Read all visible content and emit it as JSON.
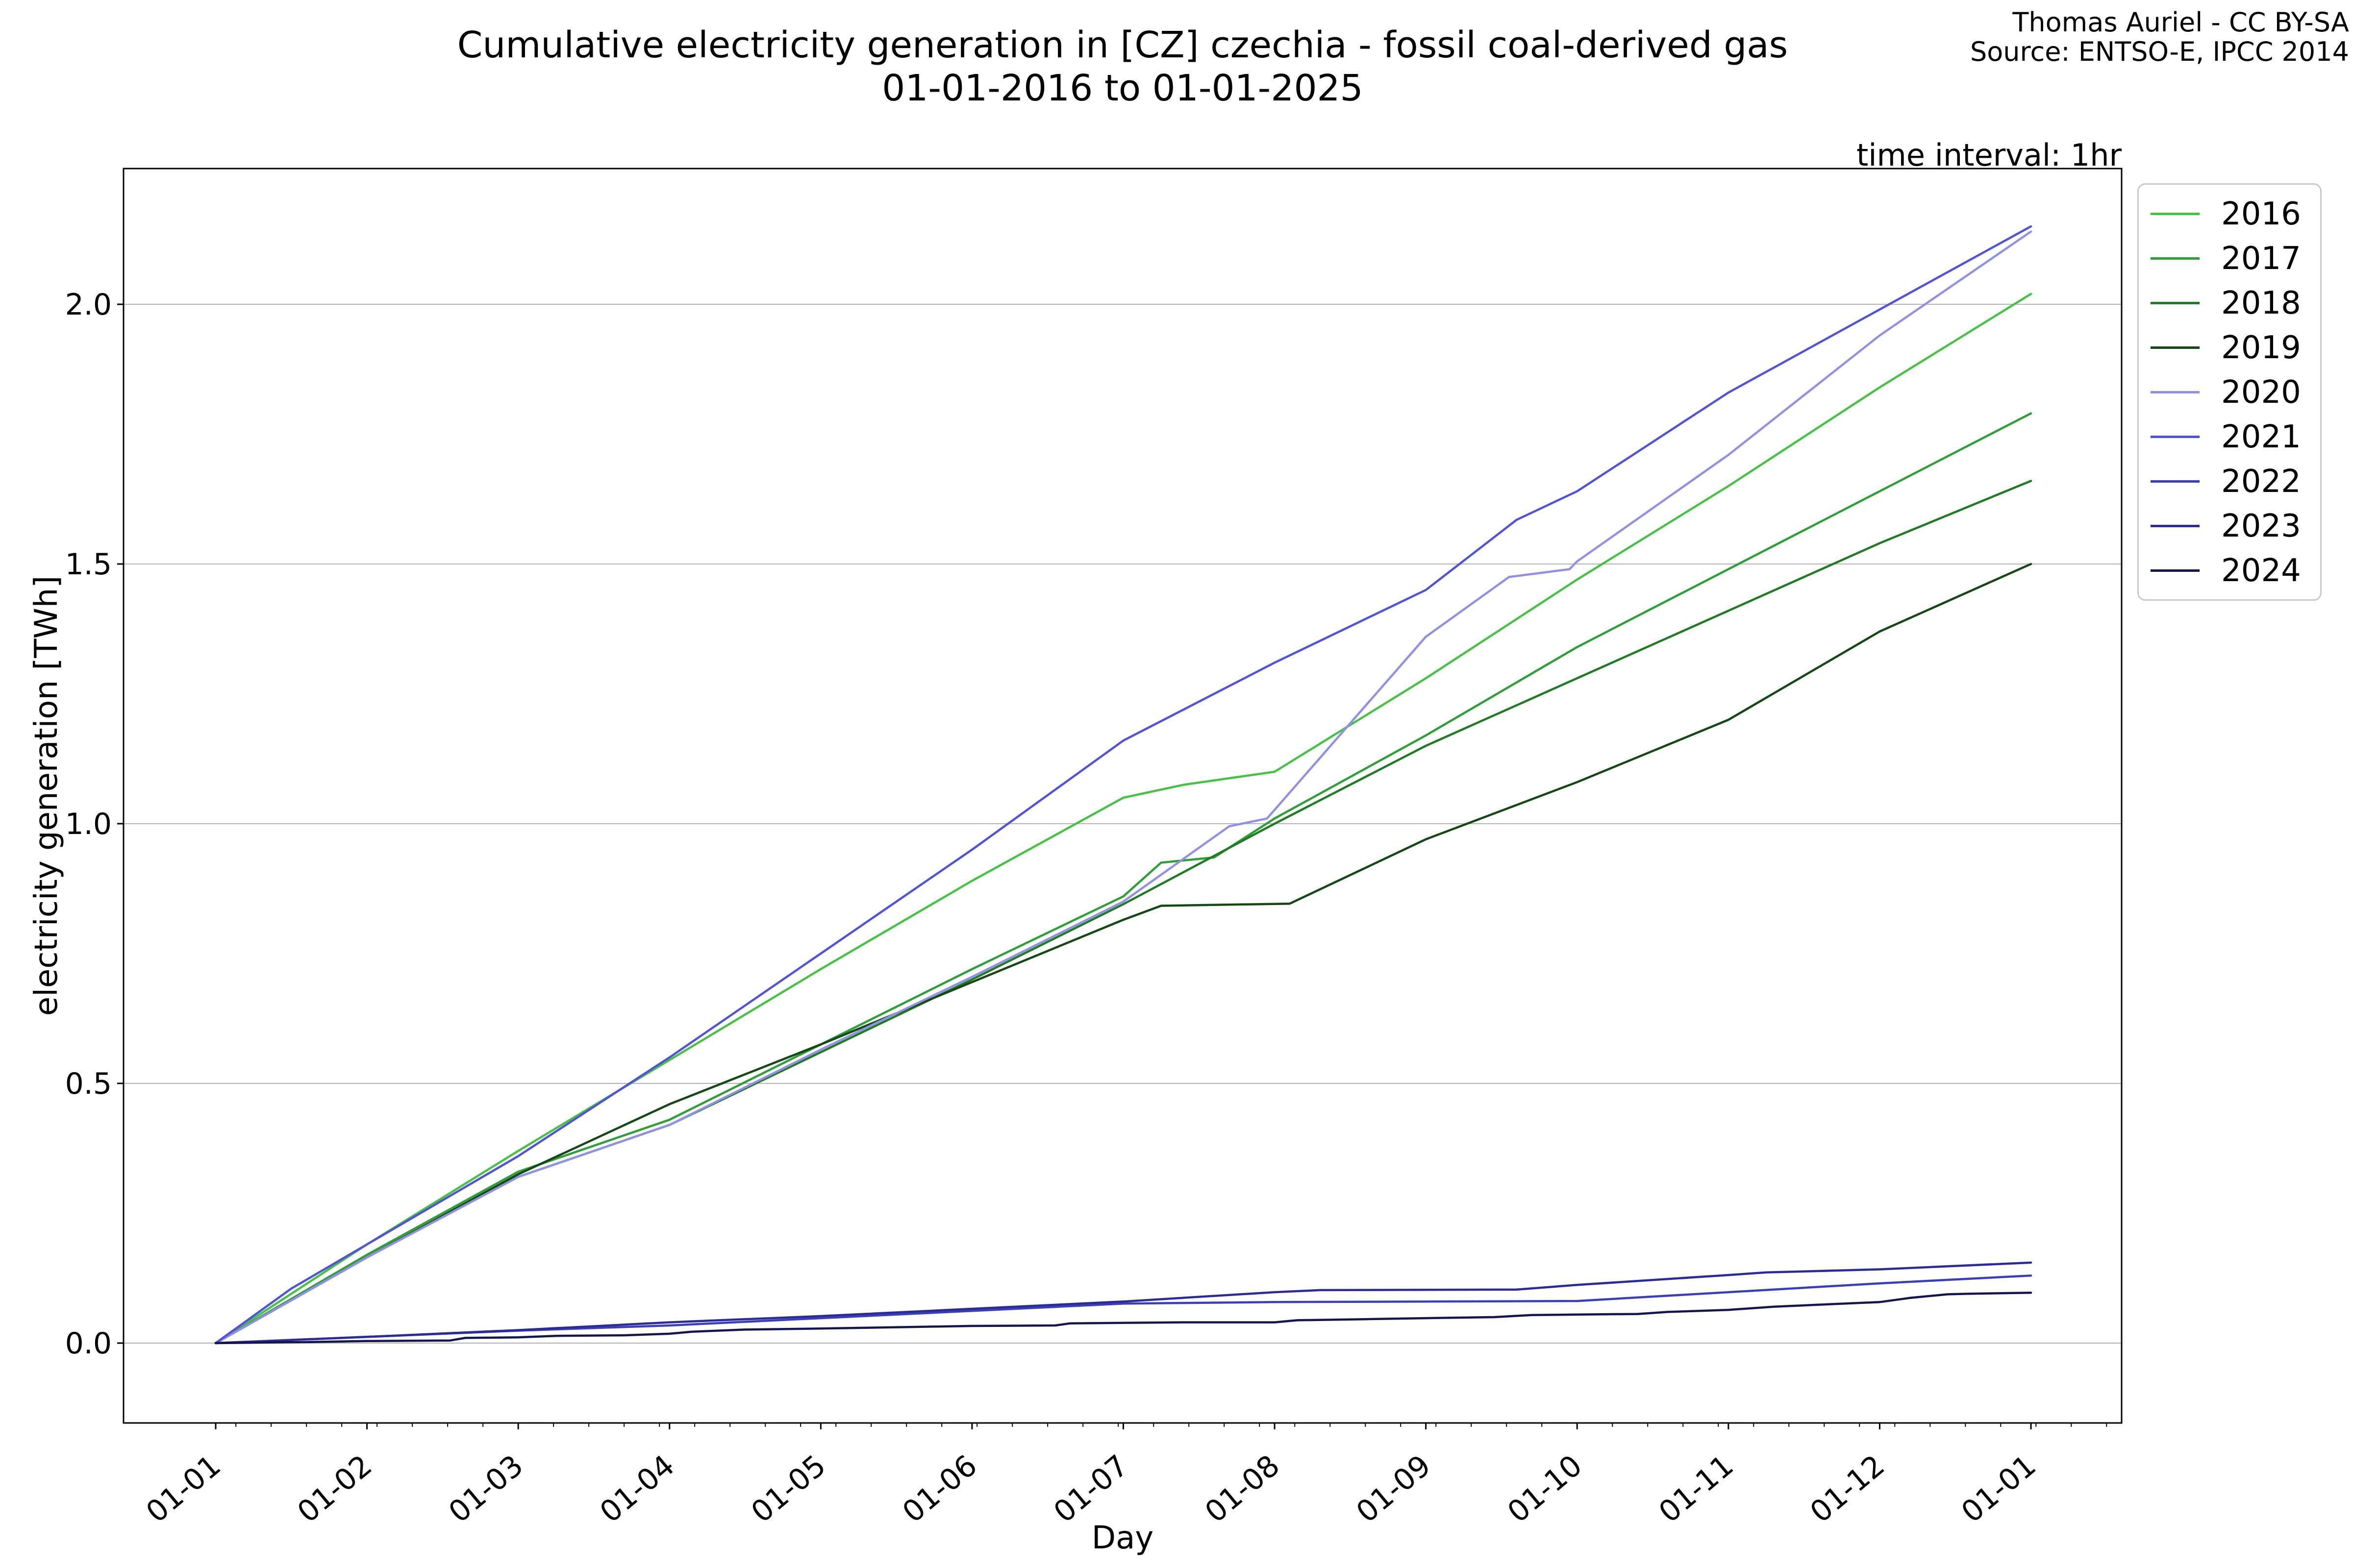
{
  "header": {
    "title_line1": "Cumulative electricity generation in [CZ] czechia - fossil coal-derived gas",
    "title_line2": "01-01-2016 to 01-01-2025",
    "attribution_line1": "Thomas Auriel - CC BY-SA",
    "attribution_line2": "Source: ENTSO-E, IPCC 2014",
    "time_interval": "time interval: 1hr"
  },
  "axes": {
    "xlabel": "Day",
    "ylabel": "electricity generation [TWh]",
    "x_tick_labels": [
      "01-01",
      "01-02",
      "01-03",
      "01-04",
      "01-05",
      "01-06",
      "01-07",
      "01-08",
      "01-09",
      "01-10",
      "01-11",
      "01-12",
      "01-01"
    ],
    "y_tick_labels": [
      "0.0",
      "0.5",
      "1.0",
      "1.5",
      "2.0"
    ],
    "y_tick_values": [
      0.0,
      0.5,
      1.0,
      1.5,
      2.0
    ]
  },
  "legend": {
    "entries": [
      {
        "label": "2016",
        "color": "#46c146"
      },
      {
        "label": "2017",
        "color": "#2f9e38"
      },
      {
        "label": "2018",
        "color": "#1f7a24"
      },
      {
        "label": "2019",
        "color": "#134713"
      },
      {
        "label": "2020",
        "color": "#9191e3"
      },
      {
        "label": "2021",
        "color": "#5053d6"
      },
      {
        "label": "2022",
        "color": "#3c3eb8"
      },
      {
        "label": "2023",
        "color": "#2a2b94"
      },
      {
        "label": "2024",
        "color": "#15154d"
      }
    ]
  },
  "chart_data": {
    "type": "line",
    "title": "Cumulative electricity generation in [CZ] czechia - fossil coal-derived gas 01-01-2016 to 01-01-2025",
    "xlabel": "Day",
    "ylabel": "electricity generation [TWh]",
    "x_unit": "months since 01-01 (0 = Jan 1, 12 = following Jan 1)",
    "y_unit": "TWh",
    "xlim": [
      0,
      12
    ],
    "ylim": [
      -0.15,
      2.26
    ],
    "grid": "horizontal",
    "grid_color": "#b4b4b4",
    "spine_color": "#000000",
    "legend_position": "outside-upper-right",
    "series": [
      {
        "name": "2016",
        "color": "#46c146",
        "points": [
          [
            0,
            0
          ],
          [
            1,
            0.19
          ],
          [
            2,
            0.37
          ],
          [
            3,
            0.545
          ],
          [
            4,
            0.72
          ],
          [
            5,
            0.89
          ],
          [
            6,
            1.05
          ],
          [
            6.4,
            1.075
          ],
          [
            7,
            1.1
          ],
          [
            8,
            1.28
          ],
          [
            9,
            1.47
          ],
          [
            10,
            1.65
          ],
          [
            11,
            1.84
          ],
          [
            12,
            2.02
          ]
        ]
      },
      {
        "name": "2017",
        "color": "#2f9e38",
        "points": [
          [
            0,
            0
          ],
          [
            1,
            0.17
          ],
          [
            2,
            0.33
          ],
          [
            3,
            0.43
          ],
          [
            4,
            0.575
          ],
          [
            5,
            0.72
          ],
          [
            6,
            0.86
          ],
          [
            6.25,
            0.925
          ],
          [
            6.6,
            0.935
          ],
          [
            7,
            1.01
          ],
          [
            8,
            1.17
          ],
          [
            9,
            1.34
          ],
          [
            10,
            1.49
          ],
          [
            11,
            1.64
          ],
          [
            12,
            1.79
          ]
        ]
      },
      {
        "name": "2018",
        "color": "#1f7a24",
        "points": [
          [
            0,
            0
          ],
          [
            1,
            0.165
          ],
          [
            2,
            0.32
          ],
          [
            3,
            0.42
          ],
          [
            4,
            0.56
          ],
          [
            5,
            0.7
          ],
          [
            6,
            0.845
          ],
          [
            7,
            1.0
          ],
          [
            8,
            1.15
          ],
          [
            9,
            1.28
          ],
          [
            10,
            1.41
          ],
          [
            11,
            1.54
          ],
          [
            12,
            1.66
          ]
        ]
      },
      {
        "name": "2019",
        "color": "#134713",
        "points": [
          [
            0,
            0
          ],
          [
            1,
            0.165
          ],
          [
            2,
            0.325
          ],
          [
            3,
            0.46
          ],
          [
            4,
            0.575
          ],
          [
            5,
            0.695
          ],
          [
            6,
            0.815
          ],
          [
            6.25,
            0.842
          ],
          [
            7.1,
            0.846
          ],
          [
            8,
            0.97
          ],
          [
            9,
            1.08
          ],
          [
            10,
            1.2
          ],
          [
            11,
            1.37
          ],
          [
            12,
            1.5
          ]
        ]
      },
      {
        "name": "2020",
        "color": "#9191e3",
        "points": [
          [
            0,
            0
          ],
          [
            1,
            0.165
          ],
          [
            2,
            0.32
          ],
          [
            3,
            0.42
          ],
          [
            4,
            0.565
          ],
          [
            5,
            0.705
          ],
          [
            6,
            0.85
          ],
          [
            6.7,
            0.995
          ],
          [
            6.95,
            1.01
          ],
          [
            8,
            1.36
          ],
          [
            8.55,
            1.475
          ],
          [
            8.95,
            1.49
          ],
          [
            9,
            1.505
          ],
          [
            10,
            1.71
          ],
          [
            11,
            1.94
          ],
          [
            12,
            2.14
          ]
        ]
      },
      {
        "name": "2021",
        "color": "#5053d6",
        "points": [
          [
            0,
            0
          ],
          [
            0.5,
            0.105
          ],
          [
            1,
            0.19
          ],
          [
            2,
            0.36
          ],
          [
            3,
            0.55
          ],
          [
            4,
            0.75
          ],
          [
            5,
            0.95
          ],
          [
            6,
            1.16
          ],
          [
            7,
            1.31
          ],
          [
            8,
            1.45
          ],
          [
            8.6,
            1.585
          ],
          [
            9,
            1.64
          ],
          [
            10,
            1.83
          ],
          [
            11,
            1.99
          ],
          [
            12,
            2.15
          ]
        ]
      },
      {
        "name": "2022",
        "color": "#3c3eb8",
        "points": [
          [
            0,
            0
          ],
          [
            1,
            0.012
          ],
          [
            2,
            0.024
          ],
          [
            3,
            0.034
          ],
          [
            4,
            0.048
          ],
          [
            5,
            0.062
          ],
          [
            6,
            0.076
          ],
          [
            7,
            0.079
          ],
          [
            8,
            0.08
          ],
          [
            9,
            0.081
          ],
          [
            10,
            0.098
          ],
          [
            11,
            0.115
          ],
          [
            12,
            0.13
          ]
        ]
      },
      {
        "name": "2023",
        "color": "#2a2b94",
        "points": [
          [
            0,
            0
          ],
          [
            1,
            0.012
          ],
          [
            2,
            0.025
          ],
          [
            3,
            0.04
          ],
          [
            4,
            0.052
          ],
          [
            5,
            0.066
          ],
          [
            6,
            0.08
          ],
          [
            7,
            0.098
          ],
          [
            7.3,
            0.102
          ],
          [
            8.6,
            0.103
          ],
          [
            9,
            0.112
          ],
          [
            10,
            0.131
          ],
          [
            10.25,
            0.136
          ],
          [
            11,
            0.142
          ],
          [
            12,
            0.155
          ]
        ]
      },
      {
        "name": "2024",
        "color": "#15154d",
        "points": [
          [
            0,
            0
          ],
          [
            0.6,
            0.002
          ],
          [
            1,
            0.004
          ],
          [
            1.55,
            0.005
          ],
          [
            1.65,
            0.01
          ],
          [
            2,
            0.011
          ],
          [
            2.25,
            0.014
          ],
          [
            2.7,
            0.015
          ],
          [
            3,
            0.018
          ],
          [
            3.15,
            0.022
          ],
          [
            3.5,
            0.026
          ],
          [
            4,
            0.028
          ],
          [
            4.6,
            0.031
          ],
          [
            5,
            0.033
          ],
          [
            5.55,
            0.034
          ],
          [
            5.65,
            0.038
          ],
          [
            6.4,
            0.04
          ],
          [
            7,
            0.04
          ],
          [
            7.15,
            0.044
          ],
          [
            7.6,
            0.046
          ],
          [
            8,
            0.048
          ],
          [
            8.45,
            0.05
          ],
          [
            8.7,
            0.054
          ],
          [
            9,
            0.055
          ],
          [
            9.4,
            0.056
          ],
          [
            9.6,
            0.06
          ],
          [
            10,
            0.064
          ],
          [
            10.3,
            0.07
          ],
          [
            10.6,
            0.074
          ],
          [
            11,
            0.079
          ],
          [
            11.2,
            0.087
          ],
          [
            11.45,
            0.094
          ],
          [
            11.6,
            0.095
          ],
          [
            12,
            0.097
          ]
        ]
      }
    ]
  }
}
